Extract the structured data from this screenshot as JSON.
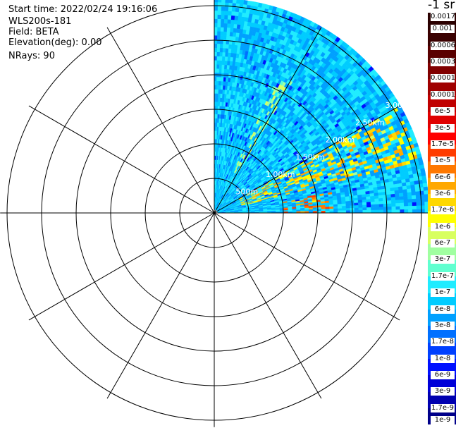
{
  "header": {
    "start_time": "Start time: 2022/02/24 19:16:06",
    "instrument": "WLS200s-181",
    "field": "Field: BETA",
    "elevation": "Elevation(deg): 0.00",
    "nrays": "NRays: 90"
  },
  "chart_data": {
    "type": "heatmap",
    "projection": "polar-ppi",
    "azimuth_range_deg": [
      0,
      90
    ],
    "nrays": 90,
    "range_rings_km": [
      0.5,
      1.0,
      1.5,
      2.0,
      2.5,
      3.0
    ],
    "range_ring_labels": [
      "500m",
      "1.00km",
      "1.50km",
      "2.00km",
      "2.50km",
      "3.00km"
    ],
    "max_range_km": 3.1,
    "azimuth_spokes_deg": [
      0,
      30,
      60,
      90,
      120,
      150,
      180,
      210,
      240,
      270,
      300,
      330
    ],
    "field": "BETA",
    "colorbar_title": "-1 sr",
    "colorbar_levels": [
      "1e-9",
      "1.7e-9",
      "3e-9",
      "6e-9",
      "1e-8",
      "1.7e-8",
      "3e-8",
      "6e-8",
      "1e-7",
      "1.7e-7",
      "3e-7",
      "6e-7",
      "1e-6",
      "1.7e-6",
      "3e-6",
      "6e-6",
      "1e-5",
      "1.7e-5",
      "3e-5",
      "6e-5",
      "0.0001",
      "0.00017",
      "0.0003",
      "0.0006",
      "0.001",
      "0.0017"
    ],
    "colorbar_colors": [
      "#00008a",
      "#0000b0",
      "#0000d8",
      "#0010ff",
      "#0040ff",
      "#0070ff",
      "#00a0ff",
      "#00ccff",
      "#20ecff",
      "#60ffd0",
      "#a0ffa0",
      "#d8ff60",
      "#ffff00",
      "#ffd800",
      "#ffa800",
      "#ff7800",
      "#ff3c00",
      "#ff0000",
      "#e00000",
      "#c00000",
      "#a00000",
      "#800000",
      "#5a0000",
      "#3a0000",
      "#2a0000"
    ],
    "background_level_index": 7,
    "features": [
      {
        "azimuth_from": 25,
        "azimuth_to": 30,
        "range_from_km": 0.6,
        "range_to_km": 2.2,
        "level_index": 10
      },
      {
        "azimuth_from": 60,
        "azimuth_to": 75,
        "range_from_km": 0.4,
        "range_to_km": 3.0,
        "level_index": 13
      },
      {
        "azimuth_from": 80,
        "azimuth_to": 89,
        "range_from_km": 1.0,
        "range_to_km": 1.7,
        "level_index": 15
      }
    ]
  }
}
